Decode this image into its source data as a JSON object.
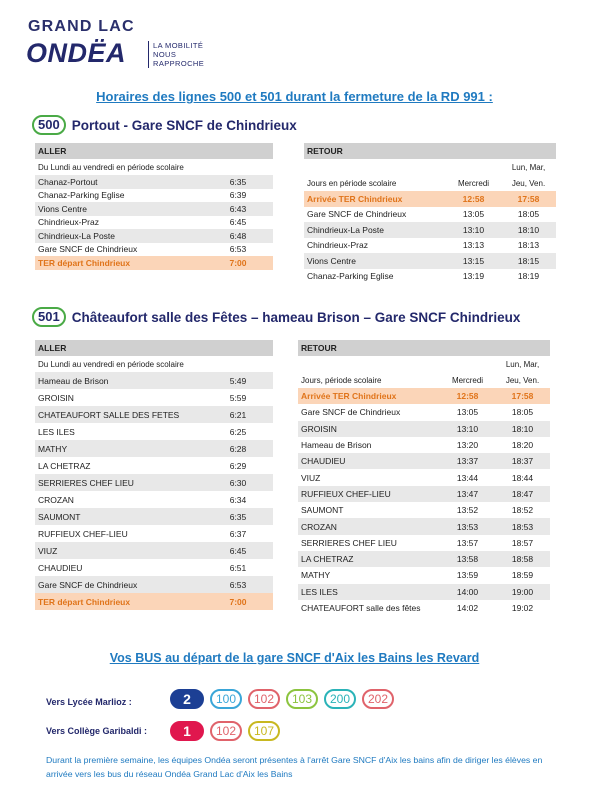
{
  "logo": {
    "top": "GRAND LAC",
    "main": "ONDËA",
    "tagline": [
      "LA MOBILITÉ",
      "NOUS",
      "RAPPROCHE"
    ]
  },
  "title": "Horaires des lignes  500 et 501 durant la fermeture de la RD 991 :",
  "line500": {
    "badge": "500",
    "name": "Portout - Gare SNCF de Chindrieux",
    "aller": {
      "header": "ALLER",
      "sub": "Du Lundi au vendredi en période scolaire",
      "rows": [
        [
          "Chanaz-Portout",
          "6:35"
        ],
        [
          "Chanaz-Parking Eglise",
          "6:39"
        ],
        [
          "Vions Centre",
          "6:43"
        ],
        [
          "Chindrieux-Praz",
          "6:45"
        ],
        [
          "Chindrieux-La Poste",
          "6:48"
        ],
        [
          "Gare SNCF de Chindrieux",
          "6:53"
        ]
      ],
      "ter": [
        "TER départ Chindrieux",
        "7:00"
      ]
    },
    "retour": {
      "header": "RETOUR",
      "sub": "Jours en période scolaire",
      "col1": "Mercredi",
      "col2a": "Lun, Mar,",
      "col2b": "Jeu, Ven.",
      "ter": [
        "Arrivée TER Chindrieux",
        "12:58",
        "17:58"
      ],
      "rows": [
        [
          "Gare SNCF de Chindrieux",
          "13:05",
          "18:05"
        ],
        [
          "Chindrieux-La Poste",
          "13:10",
          "18:10"
        ],
        [
          "Chindrieux-Praz",
          "13:13",
          "18:13"
        ],
        [
          "Vions Centre",
          "13:15",
          "18:15"
        ],
        [
          "Chanaz-Parking Eglise",
          "13:19",
          "18:19"
        ]
      ]
    }
  },
  "line501": {
    "badge": "501",
    "name": "Châteaufort salle des Fêtes – hameau Brison – Gare SNCF Chindrieux",
    "aller": {
      "header": "ALLER",
      "sub": "Du Lundi au vendredi en période scolaire",
      "rows": [
        [
          "Hameau de Brison",
          "5:49"
        ],
        [
          "GROISIN",
          "5:59"
        ],
        [
          "CHATEAUFORT SALLE DES FETES",
          "6:21"
        ],
        [
          "LES ILES",
          "6:25"
        ],
        [
          "MATHY",
          "6:28"
        ],
        [
          "LA CHETRAZ",
          "6:29"
        ],
        [
          "SERRIERES CHEF LIEU",
          "6:30"
        ],
        [
          "CROZAN",
          "6:34"
        ],
        [
          "SAUMONT",
          "6:35"
        ],
        [
          "RUFFIEUX CHEF-LIEU",
          "6:37"
        ],
        [
          "VIUZ",
          "6:45"
        ],
        [
          "CHAUDIEU",
          "6:51"
        ],
        [
          "Gare SNCF de Chindrieux",
          "6:53"
        ]
      ],
      "ter": [
        "TER départ Chindrieux",
        "7:00"
      ]
    },
    "retour": {
      "header": "RETOUR",
      "sub": "Jours, période scolaire",
      "col1": "Mercredi",
      "col2a": "Lun, Mar,",
      "col2b": "Jeu, Ven.",
      "ter": [
        "Arrivée TER Chindrieux",
        "12:58",
        "17:58"
      ],
      "rows": [
        [
          "Gare SNCF de Chindrieux",
          "13:05",
          "18:05"
        ],
        [
          "GROISIN",
          "13:10",
          "18:10"
        ],
        [
          "Hameau de Brison",
          "13:20",
          "18:20"
        ],
        [
          "CHAUDIEU",
          "13:37",
          "18:37"
        ],
        [
          "VIUZ",
          "13:44",
          "18:44"
        ],
        [
          "RUFFIEUX CHEF-LIEU",
          "13:47",
          "18:47"
        ],
        [
          "SAUMONT",
          "13:52",
          "18:52"
        ],
        [
          "CROZAN",
          "13:53",
          "18:53"
        ],
        [
          "SERRIERES CHEF LIEU",
          "13:57",
          "18:57"
        ],
        [
          "LA CHETRAZ",
          "13:58",
          "18:58"
        ],
        [
          "MATHY",
          "13:59",
          "18:59"
        ],
        [
          "LES ILES",
          "14:00",
          "19:00"
        ],
        [
          "CHATEAUFORT salle des fêtes",
          "14:02",
          "19:02"
        ]
      ]
    }
  },
  "bus": {
    "title": "Vos BUS au départ de la gare SNCF d'Aix les Bains les Revard",
    "lycee_label": "Vers Lycée Marlioz :",
    "lycee_lines": [
      {
        "num": "2",
        "color": "#1c3f94",
        "filled": true
      },
      {
        "num": "100",
        "color": "#3aa6d8",
        "filled": false
      },
      {
        "num": "102",
        "color": "#e0636b",
        "filled": false
      },
      {
        "num": "103",
        "color": "#8cc43f",
        "filled": false
      },
      {
        "num": "200",
        "color": "#2bb3b8",
        "filled": false
      },
      {
        "num": "202",
        "color": "#e0636b",
        "filled": false
      }
    ],
    "college_label": "Vers Collège Garibaldi :",
    "college_lines": [
      {
        "num": "1",
        "color": "#e0174e",
        "filled": true
      },
      {
        "num": "102",
        "color": "#e0636b",
        "filled": false
      },
      {
        "num": "107",
        "color": "#c8b820",
        "filled": false
      }
    ]
  },
  "footnote": "Durant la première semaine, les équipes Ondéa seront présentes à l'arrêt Gare SNCF d'Aix les bains afin de diriger les élèves en arrivée vers les bus du réseau Ondéa Grand Lac d'Aix les Bains"
}
